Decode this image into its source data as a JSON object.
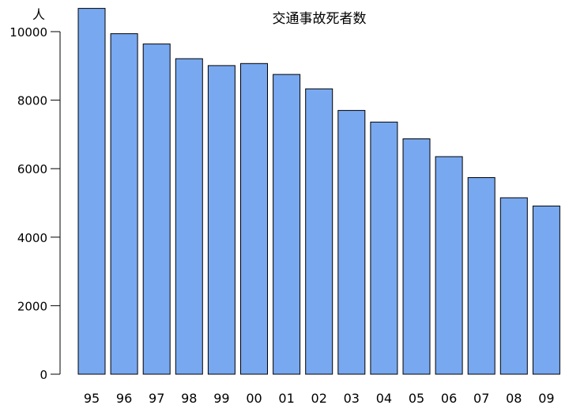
{
  "chart_data": {
    "type": "bar",
    "title": "交通事故死者数",
    "ylabel": "人",
    "xlabel": "",
    "categories": [
      "95",
      "96",
      "97",
      "98",
      "99",
      "00",
      "01",
      "02",
      "03",
      "04",
      "05",
      "06",
      "07",
      "08",
      "09"
    ],
    "values": [
      10680,
      9940,
      9640,
      9210,
      9010,
      9070,
      8750,
      8330,
      7700,
      7360,
      6870,
      6350,
      5740,
      5150,
      4910
    ],
    "ylim": [
      0,
      11000
    ],
    "yticks": [
      0,
      2000,
      4000,
      6000,
      8000,
      10000
    ],
    "grid": false,
    "bar_color": "#78a8f0"
  }
}
